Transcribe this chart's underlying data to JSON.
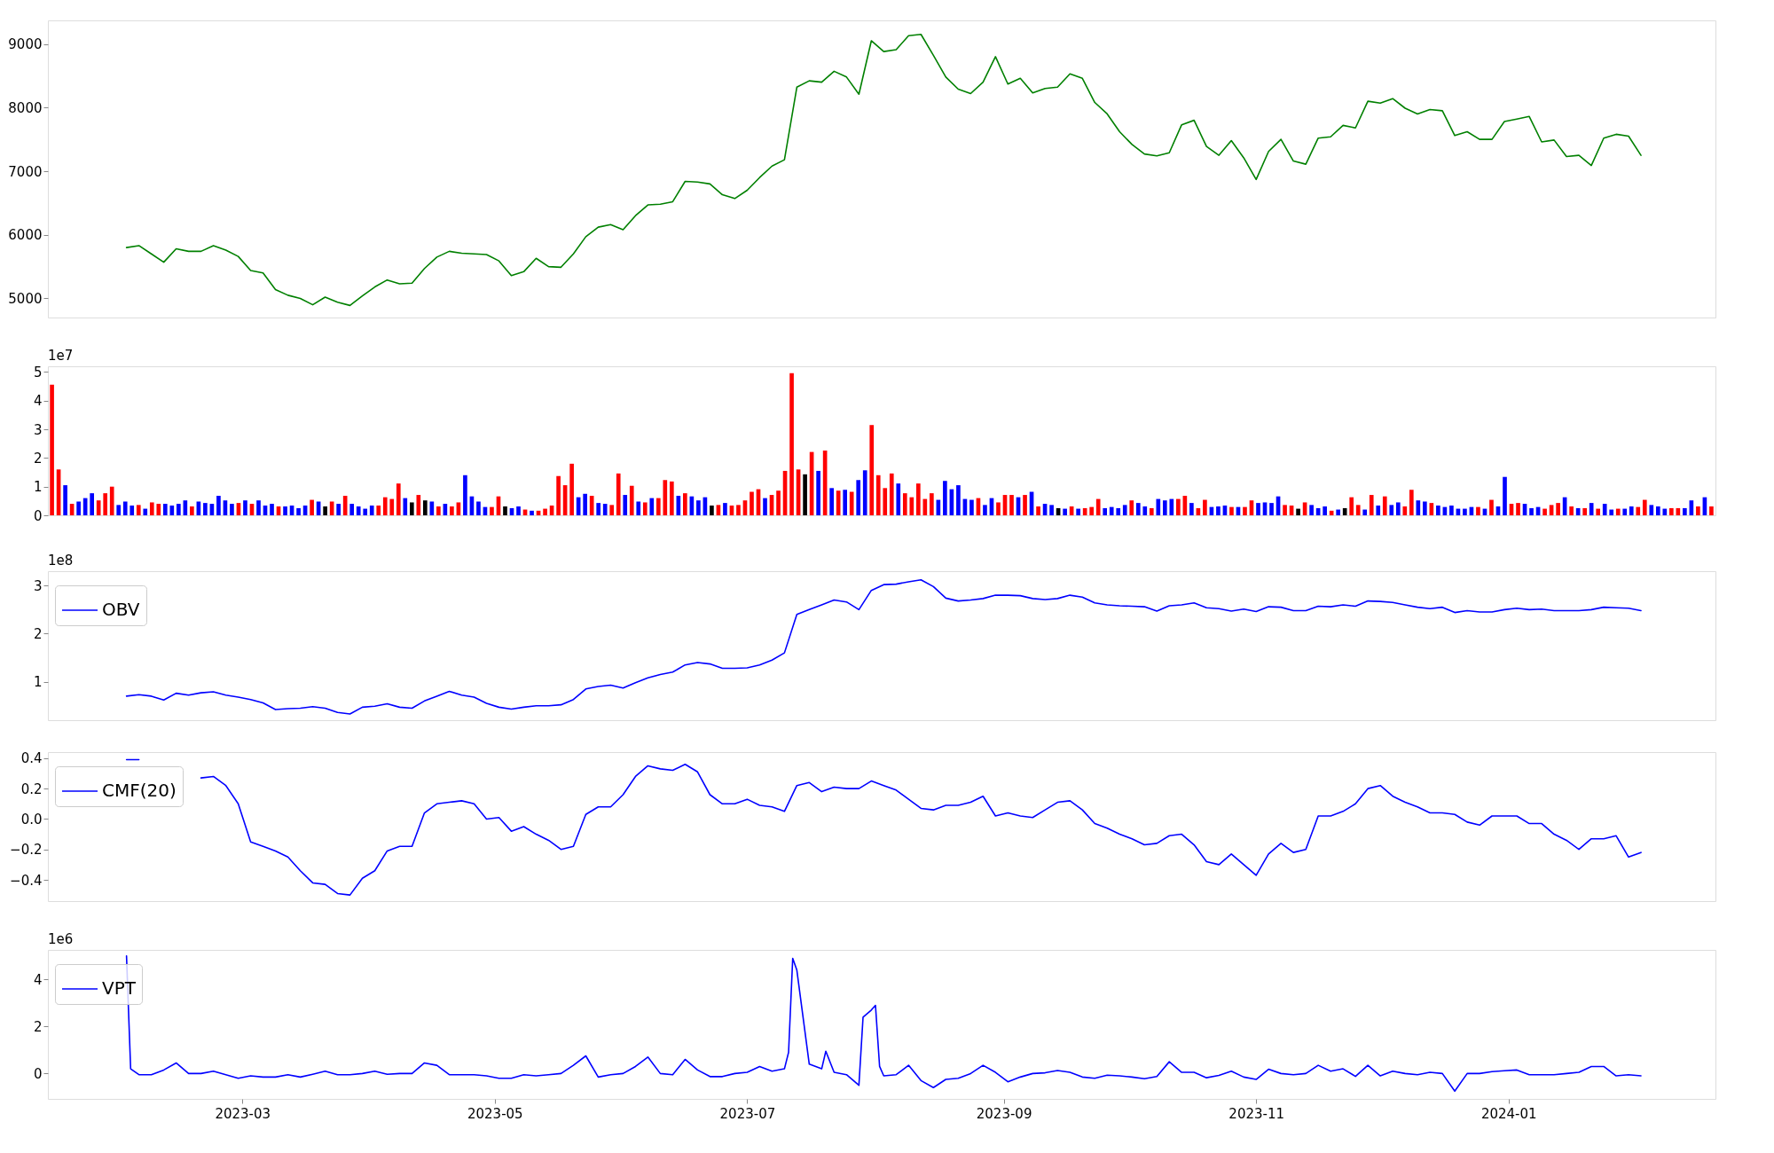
{
  "chart_data": [
    {
      "type": "line",
      "xlim": [
        "2023-01-13",
        "2024-02-20"
      ],
      "ylim": [
        4700,
        9370
      ],
      "yticks": [
        5000,
        6000,
        7000,
        8000,
        9000
      ],
      "tick_labels": "y",
      "x": [
        "2023-02-01",
        "2023-02-04",
        "2023-02-07",
        "2023-02-10",
        "2023-02-13",
        "2023-02-16",
        "2023-02-19",
        "2023-02-22",
        "2023-02-25",
        "2023-02-28",
        "2023-03-03",
        "2023-03-06",
        "2023-03-09",
        "2023-03-12",
        "2023-03-15",
        "2023-03-18",
        "2023-03-21",
        "2023-03-24",
        "2023-03-27",
        "2023-03-30",
        "2023-04-02",
        "2023-04-05",
        "2023-04-08",
        "2023-04-11",
        "2023-04-14",
        "2023-04-17",
        "2023-04-20",
        "2023-04-23",
        "2023-04-26",
        "2023-04-29",
        "2023-05-02",
        "2023-05-05",
        "2023-05-08",
        "2023-05-11",
        "2023-05-14",
        "2023-05-17",
        "2023-05-20",
        "2023-05-23",
        "2023-05-26",
        "2023-05-29",
        "2023-06-01",
        "2023-06-04",
        "2023-06-07",
        "2023-06-10",
        "2023-06-13",
        "2023-06-16",
        "2023-06-19",
        "2023-06-22",
        "2023-06-25",
        "2023-06-28",
        "2023-07-01",
        "2023-07-04",
        "2023-07-07",
        "2023-07-10",
        "2023-07-13",
        "2023-07-16",
        "2023-07-19",
        "2023-07-22",
        "2023-07-25",
        "2023-07-28",
        "2023-07-31",
        "2023-08-03",
        "2023-08-06",
        "2023-08-09",
        "2023-08-12",
        "2023-08-15",
        "2023-08-18",
        "2023-08-21",
        "2023-08-24",
        "2023-08-27",
        "2023-08-30",
        "2023-09-02",
        "2023-09-05",
        "2023-09-08",
        "2023-09-11",
        "2023-09-14",
        "2023-09-17",
        "2023-09-20",
        "2023-09-23",
        "2023-09-26",
        "2023-09-29",
        "2023-10-02",
        "2023-10-05",
        "2023-10-08",
        "2023-10-11",
        "2023-10-14",
        "2023-10-17",
        "2023-10-20",
        "2023-10-23",
        "2023-10-26",
        "2023-10-29",
        "2023-11-01",
        "2023-11-04",
        "2023-11-07",
        "2023-11-10",
        "2023-11-13",
        "2023-11-16",
        "2023-11-19",
        "2023-11-22",
        "2023-11-25",
        "2023-11-28",
        "2023-12-01",
        "2023-12-04",
        "2023-12-07",
        "2023-12-10",
        "2023-12-13",
        "2023-12-16",
        "2023-12-19",
        "2023-12-22",
        "2023-12-25",
        "2023-12-28",
        "2023-12-31",
        "2024-01-03",
        "2024-01-06",
        "2024-01-09",
        "2024-01-12",
        "2024-01-15",
        "2024-01-18",
        "2024-01-21",
        "2024-01-24",
        "2024-01-27",
        "2024-01-30",
        "2024-02-02"
      ],
      "series": [
        {
          "color": "#008000",
          "values": [
            5800,
            5830,
            5700,
            5570,
            5780,
            5740,
            5740,
            5830,
            5760,
            5660,
            5440,
            5400,
            5140,
            5050,
            5000,
            4900,
            5020,
            4940,
            4890,
            5040,
            5180,
            5290,
            5230,
            5240,
            5470,
            5650,
            5740,
            5710,
            5700,
            5690,
            5590,
            5360,
            5420,
            5630,
            5500,
            5490,
            5700,
            5970,
            6120,
            6160,
            6080,
            6300,
            6470,
            6480,
            6520,
            6840,
            6830,
            6800,
            6630,
            6570,
            6700,
            6900,
            7080,
            7180,
            8320,
            8420,
            8400,
            8570,
            8480,
            8210,
            9050,
            8880,
            8910,
            9130,
            9150,
            8820,
            8480,
            8290,
            8220,
            8400,
            8800,
            8370,
            8460,
            8230,
            8300,
            8320,
            8530,
            8460,
            8080,
            7900,
            7620,
            7420,
            7270,
            7240,
            7290,
            7730,
            7800,
            7390,
            7250,
            7480,
            7210,
            6870,
            7310,
            7500,
            7160,
            7110,
            7520,
            7540,
            7720,
            7680,
            8100,
            8070,
            8140,
            7990,
            7900,
            7970,
            7950,
            7560,
            7620,
            7500,
            7500,
            7780,
            7820,
            7860,
            7460,
            7490,
            7230,
            7250,
            7090,
            7520,
            7580,
            7550,
            7250
          ]
        }
      ]
    },
    {
      "type": "bar",
      "ylim": [
        0,
        5.2
      ],
      "yticks": [
        0,
        1,
        2,
        3,
        4,
        5
      ],
      "tick_labels": "y",
      "annotations": [
        "1e7"
      ],
      "categories": [
        null,
        null,
        null,
        null,
        null,
        null,
        null,
        null,
        null,
        null,
        null,
        null,
        null,
        null,
        null,
        null,
        null,
        null,
        null,
        null,
        null,
        null,
        null,
        null,
        null,
        null,
        null,
        null,
        null,
        null,
        null,
        null,
        null,
        null,
        null,
        null,
        null,
        null,
        null,
        null,
        null,
        null,
        null,
        null,
        null,
        null,
        null,
        null,
        null,
        null,
        null,
        null,
        null,
        null,
        null,
        null,
        null,
        null,
        null,
        null,
        null,
        null,
        null,
        null,
        null,
        null,
        null,
        null,
        null,
        null,
        null,
        null,
        null,
        null,
        null,
        null,
        null,
        null,
        null,
        null,
        null,
        null,
        null,
        null,
        null,
        null,
        null,
        null,
        null,
        null,
        null,
        null,
        null,
        null,
        null,
        null,
        null,
        null,
        null,
        null,
        null,
        null,
        null,
        null,
        null,
        null,
        null,
        null,
        null,
        null,
        null,
        null,
        null,
        null,
        null,
        null,
        null,
        null,
        null,
        null,
        null,
        null,
        null,
        null,
        null,
        null,
        null,
        null,
        null,
        null,
        null,
        null,
        null,
        null,
        null,
        null,
        null,
        null,
        null,
        null,
        null,
        null,
        null,
        null,
        null,
        null,
        null,
        null,
        null,
        null,
        null,
        null,
        null,
        null,
        null,
        null,
        null,
        null,
        null,
        null,
        null,
        null,
        null,
        null,
        null,
        null,
        null,
        null,
        null,
        null,
        null,
        null,
        null,
        null,
        null,
        null,
        null,
        null,
        null,
        null,
        null,
        null,
        null,
        null,
        null,
        null,
        null,
        null,
        null,
        null,
        null,
        null,
        null,
        null,
        null,
        null,
        null,
        null,
        null,
        null,
        null,
        null,
        null,
        null,
        null,
        null,
        null,
        null,
        null,
        null,
        null,
        null,
        null,
        null,
        null,
        null,
        null,
        null,
        null,
        null,
        null,
        null,
        null,
        null,
        null,
        null,
        null,
        null,
        null,
        null,
        null,
        null,
        null,
        null,
        null,
        null,
        null,
        null,
        null,
        null,
        null,
        null,
        null,
        null,
        null,
        null,
        null,
        null,
        null,
        null
      ],
      "values": [
        4.56,
        1.6,
        1.05,
        0.4,
        0.48,
        0.6,
        0.77,
        0.52,
        0.77,
        1.0,
        0.36,
        0.48,
        0.34,
        0.36,
        0.23,
        0.45,
        0.4,
        0.4,
        0.34,
        0.4,
        0.52,
        0.31,
        0.48,
        0.43,
        0.4,
        0.68,
        0.52,
        0.4,
        0.43,
        0.52,
        0.4,
        0.52,
        0.34,
        0.4,
        0.31,
        0.31,
        0.34,
        0.25,
        0.34,
        0.54,
        0.48,
        0.31,
        0.48,
        0.4,
        0.68,
        0.4,
        0.31,
        0.23,
        0.34,
        0.34,
        0.63,
        0.57,
        1.11,
        0.6,
        0.45,
        0.71,
        0.52,
        0.48,
        0.31,
        0.4,
        0.31,
        0.45,
        1.4,
        0.66,
        0.48,
        0.29,
        0.29,
        0.66,
        0.31,
        0.25,
        0.31,
        0.2,
        0.16,
        0.16,
        0.23,
        0.34,
        1.37,
        1.05,
        1.8,
        0.63,
        0.75,
        0.68,
        0.43,
        0.4,
        0.36,
        1.46,
        0.71,
        1.03,
        0.48,
        0.45,
        0.6,
        0.6,
        1.23,
        1.18,
        0.68,
        0.77,
        0.66,
        0.52,
        0.63,
        0.34,
        0.36,
        0.43,
        0.34,
        0.36,
        0.52,
        0.82,
        0.91,
        0.6,
        0.71,
        0.86,
        1.55,
        4.96,
        1.6,
        1.43,
        2.21,
        1.55,
        2.26,
        0.95,
        0.86,
        0.89,
        0.82,
        1.23,
        1.57,
        3.15,
        1.4,
        0.95,
        1.46,
        1.11,
        0.77,
        0.63,
        1.11,
        0.57,
        0.77,
        0.54,
        1.2,
        0.91,
        1.05,
        0.57,
        0.54,
        0.6,
        0.36,
        0.6,
        0.45,
        0.71,
        0.71,
        0.63,
        0.71,
        0.82,
        0.31,
        0.4,
        0.36,
        0.25,
        0.23,
        0.31,
        0.23,
        0.25,
        0.29,
        0.57,
        0.25,
        0.29,
        0.25,
        0.36,
        0.52,
        0.43,
        0.31,
        0.25,
        0.57,
        0.52,
        0.57,
        0.57,
        0.68,
        0.43,
        0.25,
        0.54,
        0.29,
        0.31,
        0.34,
        0.29,
        0.29,
        0.29,
        0.52,
        0.43,
        0.45,
        0.43,
        0.66,
        0.36,
        0.34,
        0.23,
        0.45,
        0.36,
        0.25,
        0.31,
        0.16,
        0.2,
        0.25,
        0.63,
        0.36,
        0.2,
        0.71,
        0.34,
        0.66,
        0.36,
        0.45,
        0.31,
        0.89,
        0.52,
        0.48,
        0.43,
        0.34,
        0.29,
        0.34,
        0.23,
        0.23,
        0.29,
        0.29,
        0.23,
        0.54,
        0.31,
        1.34,
        0.4,
        0.43,
        0.4,
        0.25,
        0.29,
        0.23,
        0.36,
        0.43,
        0.63,
        0.31,
        0.25,
        0.25,
        0.43,
        0.23,
        0.4,
        0.2,
        0.23,
        0.23,
        0.31,
        0.29,
        0.54,
        0.36,
        0.31,
        0.23,
        0.25,
        0.25,
        0.25,
        0.52,
        0.31,
        0.63,
        0.31
      ],
      "colors": [
        "#ff0000",
        "#ff0000",
        "#0000ff",
        "#ff0000",
        "#0000ff",
        "#0000ff",
        "#0000ff",
        "#ff0000",
        "#ff0000",
        "#ff0000",
        "#0000ff",
        "#0000ff",
        "#0000ff",
        "#ff0000",
        "#0000ff",
        "#ff0000",
        "#ff0000",
        "#0000ff",
        "#0000ff",
        "#0000ff",
        "#0000ff",
        "#ff0000",
        "#0000ff",
        "#0000ff",
        "#0000ff",
        "#0000ff",
        "#0000ff",
        "#0000ff",
        "#ff0000",
        "#0000ff",
        "#ff0000",
        "#0000ff",
        "#0000ff",
        "#0000ff",
        "#ff0000",
        "#0000ff",
        "#0000ff",
        "#0000ff",
        "#0000ff",
        "#ff0000",
        "#0000ff",
        "#000000",
        "#ff0000",
        "#0000ff",
        "#ff0000",
        "#0000ff",
        "#0000ff",
        "#0000ff",
        "#0000ff",
        "#ff0000",
        "#ff0000",
        "#ff0000",
        "#ff0000",
        "#0000ff",
        "#000000",
        "#ff0000",
        "#000000",
        "#0000ff",
        "#ff0000",
        "#0000ff",
        "#ff0000",
        "#ff0000",
        "#0000ff",
        "#0000ff",
        "#0000ff",
        "#0000ff",
        "#ff0000",
        "#ff0000",
        "#000000",
        "#0000ff",
        "#0000ff",
        "#ff0000",
        "#0000ff",
        "#ff0000",
        "#ff0000",
        "#ff0000",
        "#ff0000",
        "#ff0000",
        "#ff0000",
        "#0000ff",
        "#0000ff",
        "#ff0000",
        "#0000ff",
        "#0000ff",
        "#ff0000",
        "#ff0000",
        "#0000ff",
        "#ff0000",
        "#0000ff",
        "#ff0000",
        "#0000ff",
        "#ff0000",
        "#ff0000",
        "#ff0000",
        "#0000ff",
        "#ff0000",
        "#0000ff",
        "#0000ff",
        "#0000ff",
        "#000000",
        "#ff0000",
        "#0000ff",
        "#ff0000",
        "#ff0000",
        "#ff0000",
        "#ff0000",
        "#ff0000",
        "#0000ff",
        "#ff0000",
        "#ff0000",
        "#ff0000",
        "#ff0000",
        "#ff0000",
        "#000000",
        "#ff0000",
        "#0000ff",
        "#ff0000",
        "#0000ff",
        "#ff0000",
        "#0000ff",
        "#ff0000",
        "#0000ff",
        "#0000ff",
        "#ff0000",
        "#ff0000",
        "#ff0000",
        "#ff0000",
        "#0000ff",
        "#ff0000",
        "#ff0000",
        "#ff0000",
        "#ff0000",
        "#ff0000",
        "#0000ff",
        "#0000ff",
        "#0000ff",
        "#0000ff",
        "#0000ff",
        "#0000ff",
        "#ff0000",
        "#0000ff",
        "#0000ff",
        "#ff0000",
        "#ff0000",
        "#ff0000",
        "#0000ff",
        "#ff0000",
        "#0000ff",
        "#ff0000",
        "#0000ff",
        "#0000ff",
        "#000000",
        "#0000ff",
        "#ff0000",
        "#0000ff",
        "#ff0000",
        "#ff0000",
        "#ff0000",
        "#0000ff",
        "#0000ff",
        "#0000ff",
        "#0000ff",
        "#ff0000",
        "#0000ff",
        "#0000ff",
        "#ff0000",
        "#0000ff",
        "#0000ff",
        "#0000ff",
        "#ff0000",
        "#ff0000",
        "#0000ff",
        "#ff0000",
        "#ff0000",
        "#0000ff",
        "#0000ff",
        "#0000ff",
        "#ff0000",
        "#0000ff",
        "#ff0000",
        "#ff0000",
        "#0000ff",
        "#0000ff",
        "#0000ff",
        "#0000ff",
        "#ff0000",
        "#ff0000",
        "#000000",
        "#ff0000",
        "#0000ff",
        "#0000ff",
        "#0000ff",
        "#ff0000",
        "#0000ff",
        "#000000",
        "#ff0000",
        "#ff0000",
        "#0000ff",
        "#ff0000",
        "#0000ff",
        "#ff0000",
        "#0000ff",
        "#0000ff",
        "#ff0000",
        "#ff0000",
        "#0000ff",
        "#0000ff",
        "#ff0000",
        "#0000ff",
        "#0000ff",
        "#0000ff",
        "#0000ff",
        "#0000ff",
        "#0000ff",
        "#ff0000",
        "#0000ff",
        "#ff0000",
        "#0000ff",
        "#0000ff",
        "#ff0000",
        "#ff0000",
        "#0000ff",
        "#0000ff",
        "#0000ff",
        "#ff0000",
        "#ff0000",
        "#ff0000",
        "#0000ff",
        "#ff0000",
        "#0000ff",
        "#ff0000",
        "#0000ff",
        "#ff0000",
        "#0000ff",
        "#0000ff",
        "#ff0000",
        "#0000ff",
        "#0000ff",
        "#ff0000",
        "#ff0000",
        "#0000ff",
        "#0000ff",
        "#0000ff",
        "#ff0000",
        "#ff0000",
        "#0000ff",
        "#0000ff",
        "#ff0000",
        "#0000ff",
        "#ff0000"
      ]
    },
    {
      "type": "line",
      "xlim": [
        "2023-01-13",
        "2024-02-20"
      ],
      "ylim": [
        0.2,
        3.3
      ],
      "yticks": [
        1,
        2,
        3
      ],
      "tick_labels": "y",
      "legend": "top left",
      "annotations": [
        "1e8"
      ],
      "x": [
        "2023-02-01",
        "2023-02-04",
        "2023-02-07",
        "2023-02-10",
        "2023-02-13",
        "2023-02-16",
        "2023-02-19",
        "2023-02-22",
        "2023-02-25",
        "2023-02-28",
        "2023-03-03",
        "2023-03-06",
        "2023-03-09",
        "2023-03-12",
        "2023-03-15",
        "2023-03-18",
        "2023-03-21",
        "2023-03-24",
        "2023-03-27",
        "2023-03-30",
        "2023-04-02",
        "2023-04-05",
        "2023-04-08",
        "2023-04-11",
        "2023-04-14",
        "2023-04-17",
        "2023-04-20",
        "2023-04-23",
        "2023-04-26",
        "2023-04-29",
        "2023-05-02",
        "2023-05-05",
        "2023-05-08",
        "2023-05-11",
        "2023-05-14",
        "2023-05-17",
        "2023-05-20",
        "2023-05-23",
        "2023-05-26",
        "2023-05-29",
        "2023-06-01",
        "2023-06-04",
        "2023-06-07",
        "2023-06-10",
        "2023-06-13",
        "2023-06-16",
        "2023-06-19",
        "2023-06-22",
        "2023-06-25",
        "2023-06-28",
        "2023-07-01",
        "2023-07-04",
        "2023-07-07",
        "2023-07-10",
        "2023-07-13",
        "2023-07-16",
        "2023-07-19",
        "2023-07-22",
        "2023-07-25",
        "2023-07-28",
        "2023-07-31",
        "2023-08-03",
        "2023-08-06",
        "2023-08-09",
        "2023-08-12",
        "2023-08-15",
        "2023-08-18",
        "2023-08-21",
        "2023-08-24",
        "2023-08-27",
        "2023-08-30",
        "2023-09-02",
        "2023-09-05",
        "2023-09-08",
        "2023-09-11",
        "2023-09-14",
        "2023-09-17",
        "2023-09-20",
        "2023-09-23",
        "2023-09-26",
        "2023-09-29",
        "2023-10-02",
        "2023-10-05",
        "2023-10-08",
        "2023-10-11",
        "2023-10-14",
        "2023-10-17",
        "2023-10-20",
        "2023-10-23",
        "2023-10-26",
        "2023-10-29",
        "2023-11-01",
        "2023-11-04",
        "2023-11-07",
        "2023-11-10",
        "2023-11-13",
        "2023-11-16",
        "2023-11-19",
        "2023-11-22",
        "2023-11-25",
        "2023-11-28",
        "2023-12-01",
        "2023-12-04",
        "2023-12-07",
        "2023-12-10",
        "2023-12-13",
        "2023-12-16",
        "2023-12-19",
        "2023-12-22",
        "2023-12-25",
        "2023-12-28",
        "2023-12-31",
        "2024-01-03",
        "2024-01-06",
        "2024-01-09",
        "2024-01-12",
        "2024-01-15",
        "2024-01-18",
        "2024-01-21",
        "2024-01-24",
        "2024-01-27",
        "2024-01-30",
        "2024-02-02"
      ],
      "series": [
        {
          "name": "OBV",
          "color": "#0000ff",
          "values": [
            0.7,
            0.73,
            0.7,
            0.62,
            0.76,
            0.72,
            0.77,
            0.79,
            0.72,
            0.68,
            0.63,
            0.56,
            0.42,
            0.44,
            0.45,
            0.48,
            0.45,
            0.36,
            0.33,
            0.47,
            0.49,
            0.54,
            0.47,
            0.45,
            0.6,
            0.7,
            0.8,
            0.72,
            0.68,
            0.55,
            0.47,
            0.43,
            0.47,
            0.5,
            0.5,
            0.52,
            0.63,
            0.85,
            0.9,
            0.93,
            0.87,
            0.98,
            1.08,
            1.15,
            1.2,
            1.35,
            1.4,
            1.37,
            1.28,
            1.28,
            1.29,
            1.35,
            1.45,
            1.6,
            2.4,
            2.5,
            2.6,
            2.7,
            2.66,
            2.5,
            2.9,
            3.02,
            3.03,
            3.08,
            3.12,
            2.98,
            2.74,
            2.68,
            2.7,
            2.73,
            2.8,
            2.8,
            2.79,
            2.73,
            2.71,
            2.73,
            2.8,
            2.76,
            2.64,
            2.6,
            2.58,
            2.57,
            2.56,
            2.47,
            2.58,
            2.6,
            2.64,
            2.54,
            2.52,
            2.47,
            2.51,
            2.46,
            2.56,
            2.55,
            2.48,
            2.48,
            2.57,
            2.56,
            2.6,
            2.57,
            2.68,
            2.67,
            2.65,
            2.6,
            2.55,
            2.52,
            2.55,
            2.44,
            2.48,
            2.45,
            2.45,
            2.5,
            2.53,
            2.5,
            2.51,
            2.48,
            2.48,
            2.48,
            2.5,
            2.55,
            2.54,
            2.53,
            2.48
          ]
        }
      ]
    },
    {
      "type": "line",
      "xlim": [
        "2023-01-13",
        "2024-02-20"
      ],
      "ylim": [
        -0.54,
        0.44
      ],
      "yticks": [
        {
          "value": -0.4,
          "label": "−0.4"
        },
        {
          "value": -0.2,
          "label": "−0.2"
        },
        {
          "value": 0,
          "label": "0.0"
        },
        0.2,
        0.4
      ],
      "tick_labels": "y",
      "legend": "top left",
      "x": [
        "2023-02-01",
        "2023-02-04",
        "2023-02-07",
        "2023-02-10",
        "2023-02-13",
        "2023-02-16",
        "2023-02-19",
        "2023-02-22",
        "2023-02-25",
        "2023-02-28",
        "2023-03-03",
        "2023-03-06",
        "2023-03-09",
        "2023-03-12",
        "2023-03-15",
        "2023-03-18",
        "2023-03-21",
        "2023-03-24",
        "2023-03-27",
        "2023-03-30",
        "2023-04-02",
        "2023-04-05",
        "2023-04-08",
        "2023-04-11",
        "2023-04-14",
        "2023-04-17",
        "2023-04-20",
        "2023-04-23",
        "2023-04-26",
        "2023-04-29",
        "2023-05-02",
        "2023-05-05",
        "2023-05-08",
        "2023-05-11",
        "2023-05-14",
        "2023-05-17",
        "2023-05-20",
        "2023-05-23",
        "2023-05-26",
        "2023-05-29",
        "2023-06-01",
        "2023-06-04",
        "2023-06-07",
        "2023-06-10",
        "2023-06-13",
        "2023-06-16",
        "2023-06-19",
        "2023-06-22",
        "2023-06-25",
        "2023-06-28",
        "2023-07-01",
        "2023-07-04",
        "2023-07-07",
        "2023-07-10",
        "2023-07-13",
        "2023-07-16",
        "2023-07-19",
        "2023-07-22",
        "2023-07-25",
        "2023-07-28",
        "2023-07-31",
        "2023-08-03",
        "2023-08-06",
        "2023-08-09",
        "2023-08-12",
        "2023-08-15",
        "2023-08-18",
        "2023-08-21",
        "2023-08-24",
        "2023-08-27",
        "2023-08-30",
        "2023-09-02",
        "2023-09-05",
        "2023-09-08",
        "2023-09-11",
        "2023-09-14",
        "2023-09-17",
        "2023-09-20",
        "2023-09-23",
        "2023-09-26",
        "2023-09-29",
        "2023-10-02",
        "2023-10-05",
        "2023-10-08",
        "2023-10-11",
        "2023-10-14",
        "2023-10-17",
        "2023-10-20",
        "2023-10-23",
        "2023-10-26",
        "2023-10-29",
        "2023-11-01",
        "2023-11-04",
        "2023-11-07",
        "2023-11-10",
        "2023-11-13",
        "2023-11-16",
        "2023-11-19",
        "2023-11-22",
        "2023-11-25",
        "2023-11-28",
        "2023-12-01",
        "2023-12-04",
        "2023-12-07",
        "2023-12-10",
        "2023-12-13",
        "2023-12-16",
        "2023-12-19",
        "2023-12-22",
        "2023-12-25",
        "2023-12-28",
        "2023-12-31",
        "2024-01-03",
        "2024-01-06",
        "2024-01-09",
        "2024-01-12",
        "2024-01-15",
        "2024-01-18",
        "2024-01-21",
        "2024-01-24",
        "2024-01-27",
        "2024-01-30",
        "2024-02-02"
      ],
      "series": [
        {
          "name": "CMF(20)",
          "color": "#0000ff",
          "values": [
            0.39,
            0.39,
            null,
            null,
            null,
            null,
            0.27,
            0.28,
            0.22,
            0.1,
            -0.15,
            -0.18,
            -0.21,
            -0.25,
            -0.34,
            -0.42,
            -0.43,
            -0.49,
            -0.5,
            -0.39,
            -0.34,
            -0.21,
            -0.18,
            -0.18,
            0.04,
            0.1,
            0.11,
            0.12,
            0.1,
            0.0,
            0.01,
            -0.08,
            -0.05,
            -0.1,
            -0.14,
            -0.2,
            -0.18,
            0.03,
            0.08,
            0.08,
            0.16,
            0.28,
            0.35,
            0.33,
            0.32,
            0.36,
            0.31,
            0.16,
            0.1,
            0.1,
            0.13,
            0.09,
            0.08,
            0.05,
            0.22,
            0.24,
            0.18,
            0.21,
            0.2,
            0.2,
            0.25,
            0.22,
            0.19,
            0.13,
            0.07,
            0.06,
            0.09,
            0.09,
            0.11,
            0.15,
            0.02,
            0.04,
            0.02,
            0.01,
            0.06,
            0.11,
            0.12,
            0.06,
            -0.03,
            -0.06,
            -0.1,
            -0.13,
            -0.17,
            -0.16,
            -0.11,
            -0.1,
            -0.17,
            -0.28,
            -0.3,
            -0.23,
            -0.3,
            -0.37,
            -0.23,
            -0.16,
            -0.22,
            -0.2,
            0.02,
            0.02,
            0.05,
            0.1,
            0.2,
            0.22,
            0.15,
            0.11,
            0.08,
            0.04,
            0.04,
            0.03,
            -0.02,
            -0.04,
            0.02,
            0.02,
            0.02,
            -0.03,
            -0.03,
            -0.1,
            -0.14,
            -0.2,
            -0.13,
            -0.13,
            -0.11,
            -0.25,
            -0.22
          ]
        }
      ]
    },
    {
      "type": "line",
      "xlim": [
        "2023-01-13",
        "2024-02-20"
      ],
      "ylim": [
        -1.08,
        5.26
      ],
      "yticks": [
        0,
        2,
        4
      ],
      "legend": "top left",
      "annotations": [
        "1e6"
      ],
      "xticks": [
        {
          "value": "2023-03-01",
          "label": "2023-03"
        },
        {
          "value": "2023-05-01",
          "label": "2023-05"
        },
        {
          "value": "2023-07-01",
          "label": "2023-07"
        },
        {
          "value": "2023-09-01",
          "label": "2023-09"
        },
        {
          "value": "2023-11-01",
          "label": "2023-11"
        },
        {
          "value": "2024-01-01",
          "label": "2024-01"
        }
      ],
      "x": [
        "2023-02-01",
        "2023-02-02",
        "2023-02-04",
        "2023-02-07",
        "2023-02-10",
        "2023-02-13",
        "2023-02-16",
        "2023-02-19",
        "2023-02-22",
        "2023-02-25",
        "2023-02-28",
        "2023-03-03",
        "2023-03-06",
        "2023-03-09",
        "2023-03-12",
        "2023-03-15",
        "2023-03-18",
        "2023-03-21",
        "2023-03-24",
        "2023-03-27",
        "2023-03-30",
        "2023-04-02",
        "2023-04-05",
        "2023-04-08",
        "2023-04-11",
        "2023-04-14",
        "2023-04-17",
        "2023-04-20",
        "2023-04-23",
        "2023-04-26",
        "2023-04-29",
        "2023-05-02",
        "2023-05-05",
        "2023-05-08",
        "2023-05-11",
        "2023-05-14",
        "2023-05-17",
        "2023-05-20",
        "2023-05-23",
        "2023-05-26",
        "2023-05-29",
        "2023-06-01",
        "2023-06-04",
        "2023-06-07",
        "2023-06-10",
        "2023-06-13",
        "2023-06-16",
        "2023-06-19",
        "2023-06-22",
        "2023-06-25",
        "2023-06-28",
        "2023-07-01",
        "2023-07-04",
        "2023-07-07",
        "2023-07-10",
        "2023-07-11",
        "2023-07-12",
        "2023-07-13",
        "2023-07-16",
        "2023-07-19",
        "2023-07-20",
        "2023-07-22",
        "2023-07-25",
        "2023-07-28",
        "2023-07-29",
        "2023-07-31",
        "2023-08-01",
        "2023-08-02",
        "2023-08-03",
        "2023-08-06",
        "2023-08-09",
        "2023-08-12",
        "2023-08-15",
        "2023-08-18",
        "2023-08-21",
        "2023-08-24",
        "2023-08-27",
        "2023-08-30",
        "2023-09-02",
        "2023-09-05",
        "2023-09-08",
        "2023-09-11",
        "2023-09-14",
        "2023-09-17",
        "2023-09-20",
        "2023-09-23",
        "2023-09-26",
        "2023-09-29",
        "2023-10-02",
        "2023-10-05",
        "2023-10-08",
        "2023-10-11",
        "2023-10-14",
        "2023-10-17",
        "2023-10-20",
        "2023-10-23",
        "2023-10-26",
        "2023-10-29",
        "2023-11-01",
        "2023-11-04",
        "2023-11-07",
        "2023-11-10",
        "2023-11-13",
        "2023-11-16",
        "2023-11-19",
        "2023-11-22",
        "2023-11-25",
        "2023-11-28",
        "2023-12-01",
        "2023-12-04",
        "2023-12-07",
        "2023-12-10",
        "2023-12-13",
        "2023-12-16",
        "2023-12-19",
        "2023-12-22",
        "2023-12-25",
        "2023-12-28",
        "2023-12-31",
        "2024-01-03",
        "2024-01-06",
        "2024-01-09",
        "2024-01-12",
        "2024-01-15",
        "2024-01-18",
        "2024-01-21",
        "2024-01-24",
        "2024-01-27",
        "2024-01-30",
        "2024-02-02"
      ],
      "series": [
        {
          "name": "VPT",
          "color": "#0000ff",
          "values": [
            5.0,
            0.2,
            -0.05,
            -0.05,
            0.15,
            0.45,
            0.0,
            0.0,
            0.1,
            -0.05,
            -0.2,
            -0.1,
            -0.15,
            -0.15,
            -0.05,
            -0.15,
            -0.03,
            0.1,
            -0.05,
            -0.05,
            0.0,
            0.1,
            -0.03,
            0.0,
            0.0,
            0.45,
            0.35,
            -0.05,
            -0.05,
            -0.05,
            -0.1,
            -0.2,
            -0.2,
            -0.05,
            -0.1,
            -0.05,
            0.0,
            0.35,
            0.75,
            -0.15,
            -0.05,
            0.0,
            0.3,
            0.7,
            0.0,
            -0.05,
            0.6,
            0.15,
            -0.13,
            -0.13,
            0.0,
            0.05,
            0.3,
            0.1,
            0.2,
            0.9,
            4.9,
            4.4,
            0.4,
            0.2,
            0.95,
            0.05,
            -0.05,
            -0.5,
            2.4,
            2.7,
            2.9,
            0.3,
            -0.1,
            -0.05,
            0.35,
            -0.3,
            -0.6,
            -0.25,
            -0.2,
            0.0,
            0.35,
            0.05,
            -0.35,
            -0.15,
            0.0,
            0.03,
            0.13,
            0.05,
            -0.15,
            -0.2,
            -0.07,
            -0.1,
            -0.15,
            -0.22,
            -0.13,
            0.5,
            0.05,
            0.05,
            -0.18,
            -0.08,
            0.1,
            -0.15,
            -0.25,
            0.18,
            0.0,
            -0.05,
            0.0,
            0.35,
            0.1,
            0.2,
            -0.12,
            0.35,
            -0.1,
            0.1,
            0.0,
            -0.05,
            0.05,
            0.0,
            -0.75,
            0.0,
            0.0,
            0.08,
            0.12,
            0.15,
            -0.05,
            -0.05,
            -0.05,
            0.0,
            0.05,
            0.3,
            0.3,
            -0.1,
            -0.05,
            -0.1
          ]
        }
      ]
    }
  ]
}
